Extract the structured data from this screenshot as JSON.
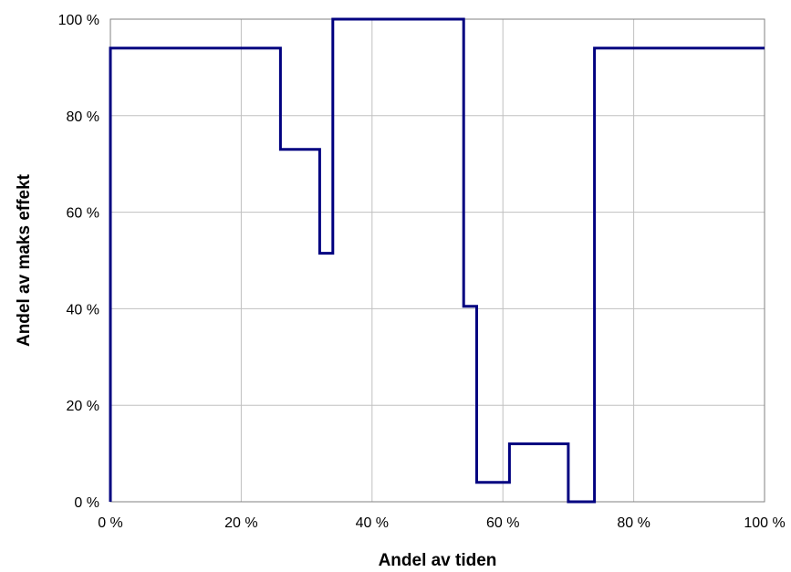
{
  "chart_data": {
    "type": "line",
    "step": true,
    "title": "",
    "xlabel": "Andel av tiden",
    "ylabel": "Andel av maks effekt",
    "xlim": [
      0,
      100
    ],
    "ylim": [
      0,
      100
    ],
    "xticks": [
      0,
      20,
      40,
      60,
      80,
      100
    ],
    "yticks": [
      0,
      20,
      40,
      60,
      80,
      100
    ],
    "xtick_labels": [
      "0 %",
      "20 %",
      "40 %",
      "60 %",
      "80 %",
      "100 %"
    ],
    "ytick_labels": [
      "0 %",
      "20 %",
      "40 %",
      "60 %",
      "80 %",
      "100 %"
    ],
    "grid": true,
    "series": [
      {
        "color": "#000080",
        "x": [
          0,
          0,
          26,
          26,
          32,
          32,
          34,
          34,
          54,
          54,
          56,
          56,
          61,
          61,
          70,
          70,
          74,
          74,
          100
        ],
        "y": [
          0,
          94,
          94,
          73,
          73,
          51.5,
          51.5,
          100,
          100,
          40.5,
          40.5,
          4,
          4,
          12,
          12,
          0,
          0,
          94,
          94
        ]
      }
    ]
  }
}
